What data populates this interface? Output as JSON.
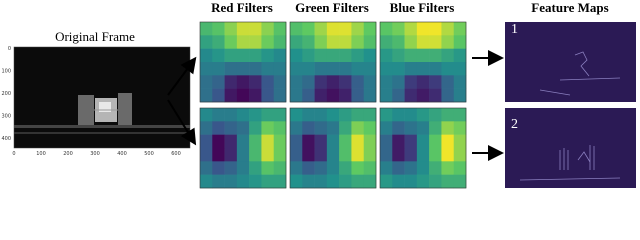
{
  "original": {
    "title": "Original Frame",
    "yticks": [
      "0",
      "100",
      "200",
      "300",
      "400"
    ],
    "xticks": [
      "0",
      "100",
      "200",
      "300",
      "400",
      "500",
      "600"
    ]
  },
  "filters": {
    "columns": [
      "Red Filters",
      "Green Filters",
      "Blue Filters"
    ]
  },
  "feature_maps": {
    "title": "Feature Maps",
    "labels": [
      "1",
      "2"
    ]
  }
}
